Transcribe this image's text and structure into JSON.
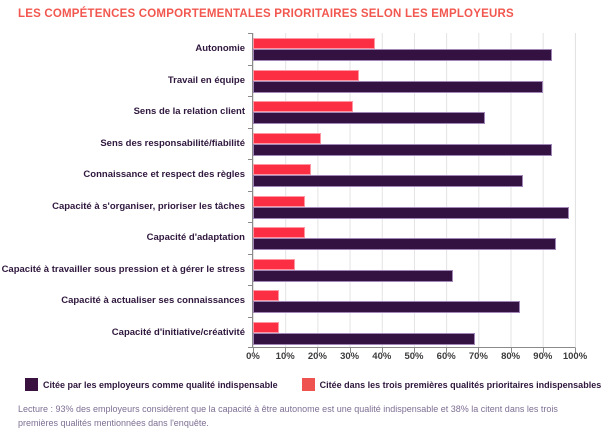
{
  "title": "LES COMPÉTENCES COMPORTEMENTALES PRIORITAIRES SELON LES EMPLOYEURS",
  "colors": {
    "title_text": "#f2574f",
    "bar_indispensable": "#331140",
    "bar_indispensable_border": "#a186b8",
    "bar_top3": "#fb2e44",
    "bar_top3_border": "#fe97a2",
    "legend_purple_swatch": "#3a1240",
    "legend_red_swatch": "#ef5350",
    "category_label_text": "#2f173d",
    "footer_text": "#7e6f94",
    "axis_line": "#8a8a8a",
    "gridline": "#e3e3e3"
  },
  "chart_data": {
    "type": "bar",
    "orientation": "horizontal",
    "title": "LES COMPÉTENCES COMPORTEMENTALES PRIORITAIRES SELON LES EMPLOYEURS",
    "categories": [
      "Autonomie",
      "Travail en équipe",
      "Sens de la relation client",
      "Sens des responsabilité/fiabilité",
      "Connaissance et respect des règles",
      "Capacité à s'organiser, prioriser les tâches",
      "Capacité d'adaptation",
      "Capacité à travailler sous pression et à gérer le stress",
      "Capacité à actualiser ses connaissances",
      "Capacité d'initiative/créativité"
    ],
    "series": [
      {
        "name": "Citée par les employeurs comme qualité indispensable",
        "color": "#331140",
        "values": [
          93,
          90,
          72,
          93,
          84,
          98,
          94,
          62,
          83,
          69
        ]
      },
      {
        "name": "Citée dans les trois premières qualités prioritaires indispensables",
        "color": "#fb2e44",
        "values": [
          38,
          33,
          31,
          21,
          18,
          16,
          16,
          13,
          8,
          8
        ]
      }
    ],
    "xlim": [
      0,
      100
    ],
    "x_ticks": [
      "0%",
      "10%",
      "20%",
      "30%",
      "40%",
      "50%",
      "60%",
      "70%",
      "80%",
      "90%",
      "100%"
    ],
    "grid": true,
    "legend_position": "bottom"
  },
  "legend": {
    "items": [
      {
        "label": "Citée par les employeurs comme qualité indispensable",
        "color": "#3a1240"
      },
      {
        "label": "Citée dans les trois premières qualités prioritaires indispensables",
        "color": "#ef5350"
      }
    ]
  },
  "footer": {
    "note": "Lecture : 93% des employeurs considèrent que la capacité à être autonome est une qualité indispensable et 38% la citent dans les trois premières qualités mentionnées dans l'enquête."
  }
}
